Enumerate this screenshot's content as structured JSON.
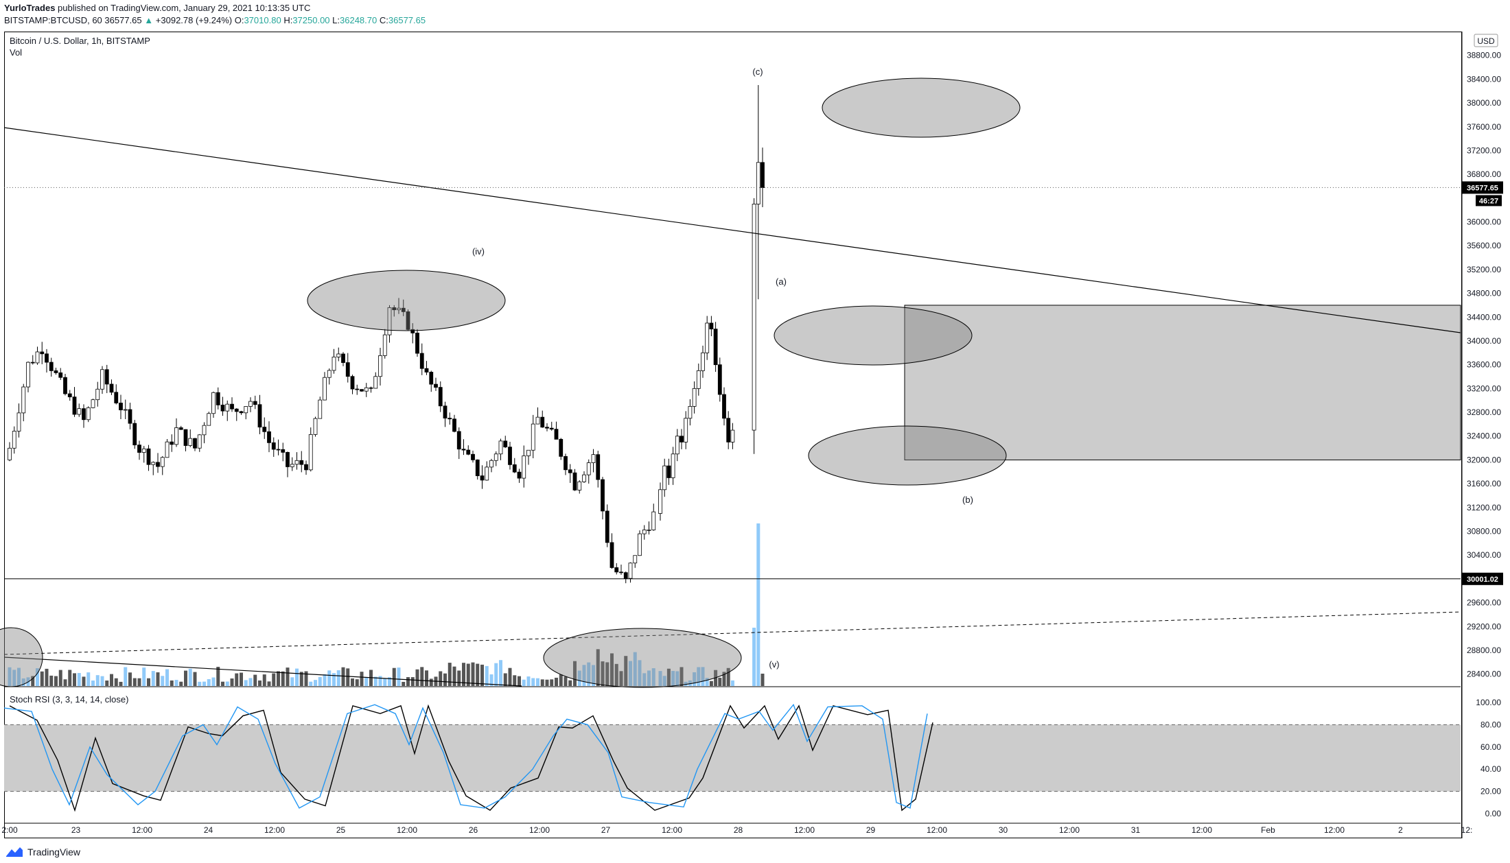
{
  "header": {
    "author": "YurloTrades",
    "published_text": "published on TradingView.com, January 29, 2021 10:13:35 UTC",
    "symbol": "BITSTAMP:BTCUSD, 60",
    "last": "36577.65",
    "change_arrow": "▲",
    "change": "+3092.78 (+9.24%)",
    "o_label": "O:",
    "o_value": "37010.80",
    "h_label": "H:",
    "h_value": "37250.00",
    "l_label": "L:",
    "l_value": "36248.70",
    "c_label": "C:",
    "c_value": "36577.65"
  },
  "legend": {
    "title": "Bitcoin / U.S. Dollar, 1h, BITSTAMP",
    "vol": "Vol",
    "stoch": "Stoch RSI (3, 3, 14, 14, close)"
  },
  "currency": "USD",
  "footer": {
    "brand": "TradingView",
    "icon": "tradingview-logo-icon"
  },
  "colors": {
    "up_body": "#ffffff",
    "down_body": "#000000",
    "wick": "#000000",
    "vol_up": "#90caf9",
    "vol_down": "#555555",
    "vol_spike": "#90caf9",
    "stoch_k": "#2196f3",
    "stoch_d": "#000000",
    "zone_fill": "#cccccc"
  },
  "chart_data": [
    {
      "type": "candlestick",
      "title": "Bitcoin / U.S. Dollar, 1h, BITSTAMP",
      "y_ticks": [
        "38800.00",
        "38400.00",
        "38000.00",
        "37600.00",
        "37200.00",
        "36800.00",
        "36000.00",
        "35600.00",
        "35200.00",
        "34800.00",
        "34400.00",
        "34000.00",
        "33600.00",
        "33200.00",
        "32800.00",
        "32400.00",
        "32000.00",
        "31600.00",
        "31200.00",
        "30800.00",
        "30400.00",
        "29600.00",
        "29200.00",
        "28800.00",
        "28400.00"
      ],
      "ylim": [
        28200,
        39200
      ],
      "x_ticks": [
        "2:00",
        "23",
        "12:00",
        "24",
        "12:00",
        "25",
        "12:00",
        "26",
        "12:00",
        "27",
        "12:00",
        "28",
        "12:00",
        "29",
        "12:00",
        "30",
        "12:00",
        "31",
        "12:00",
        "Feb",
        "12:00",
        "2",
        "12:"
      ],
      "price_labels": {
        "last": "36577.65",
        "countdown": "46:27",
        "level": "30001.02"
      },
      "last_price": 36577.65,
      "horizontal_level": 30001.02,
      "wave_labels": [
        "(iv)",
        "(c)",
        "(a)",
        "(b)",
        "(v)"
      ],
      "key_points": [
        {
          "label": "(iv) high",
          "value": 34900
        },
        {
          "label": "(v) low",
          "value": 29900
        },
        {
          "label": "(a) high",
          "value": 34450
        },
        {
          "label": "(b) low",
          "value": 32000
        },
        {
          "label": "(c) high",
          "value": 38300
        }
      ],
      "demand_zone": [
        32000,
        34600
      ]
    },
    {
      "type": "bar",
      "title": "Vol",
      "note": "volume histogram with spike on Jan 29 breakout"
    },
    {
      "type": "line",
      "title": "Stoch RSI (3, 3, 14, 14, close)",
      "y_ticks": [
        "100.00",
        "80.00",
        "60.00",
        "40.00",
        "20.00",
        "0.00"
      ],
      "ylim": [
        0,
        100
      ],
      "bands": [
        20,
        80
      ]
    }
  ]
}
